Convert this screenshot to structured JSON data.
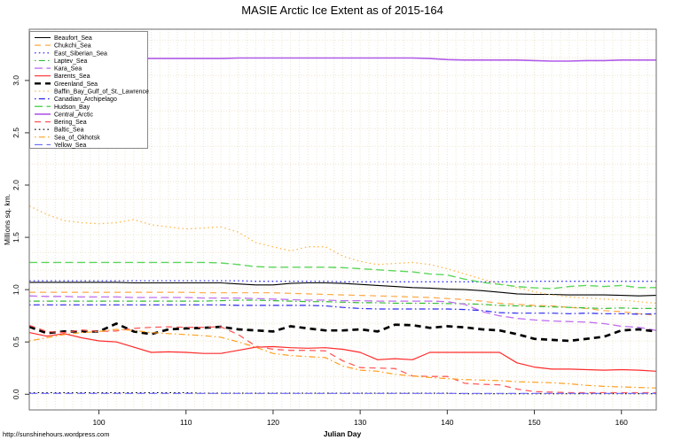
{
  "title": "MASIE Arctic Ice Extent as of 2015-164",
  "footer": {
    "url": "http://sunshinehours.wordpress.com"
  },
  "colors": {
    "border": "#6e6e6e",
    "grid": "#efe6cf",
    "tick": "#333333",
    "legend_border": "#888888",
    "background": "#ffffff"
  },
  "chart_data": {
    "type": "line",
    "title": "MASIE Arctic Ice Extent as of 2015-164",
    "xlabel": "Julian Day",
    "ylabel": "Millions sq. km.",
    "xlim": [
      92,
      164
    ],
    "ylim": [
      -0.15,
      3.49
    ],
    "x_ticks": [
      100,
      110,
      120,
      130,
      140,
      150,
      160
    ],
    "y_ticks": [
      0.0,
      0.5,
      1.0,
      1.5,
      2.0,
      2.5,
      3.0
    ],
    "grid": {
      "on": true,
      "x_step": 1,
      "y_step": 0.1693
    },
    "legend_position": "top-left",
    "x": [
      92,
      94,
      96,
      98,
      100,
      102,
      104,
      106,
      108,
      110,
      112,
      114,
      116,
      118,
      120,
      122,
      124,
      126,
      128,
      130,
      132,
      134,
      136,
      138,
      140,
      142,
      144,
      146,
      148,
      150,
      152,
      154,
      156,
      158,
      160,
      162,
      164
    ],
    "series": [
      {
        "name": "Beaufort_Sea",
        "color": "#000000",
        "dash": "solid",
        "width": 1.1,
        "values": [
          1.07,
          1.07,
          1.07,
          1.07,
          1.07,
          1.07,
          1.065,
          1.065,
          1.065,
          1.065,
          1.065,
          1.065,
          1.055,
          1.045,
          1.045,
          1.06,
          1.065,
          1.065,
          1.06,
          1.05,
          1.04,
          1.03,
          1.02,
          1.015,
          1.005,
          1.0,
          0.99,
          0.975,
          0.96,
          0.955,
          0.955,
          0.95,
          0.95,
          0.95,
          0.945,
          0.94,
          0.945
        ]
      },
      {
        "name": "Chukchi_Sea",
        "color": "#ffa845",
        "dash": "dashed",
        "width": 1.2,
        "values": [
          0.975,
          0.975,
          0.975,
          0.975,
          0.975,
          0.975,
          0.975,
          0.975,
          0.975,
          0.975,
          0.97,
          0.97,
          0.97,
          0.97,
          0.97,
          0.965,
          0.96,
          0.955,
          0.95,
          0.945,
          0.94,
          0.935,
          0.93,
          0.925,
          0.915,
          0.905,
          0.89,
          0.87,
          0.86,
          0.85,
          0.845,
          0.83,
          0.82,
          0.8,
          0.79,
          0.77,
          0.755
        ]
      },
      {
        "name": "East_Siberian_Sea",
        "color": "#3333ff",
        "dash": "dotted",
        "width": 1.3,
        "values": [
          1.085,
          1.085,
          1.085,
          1.085,
          1.085,
          1.085,
          1.085,
          1.085,
          1.085,
          1.085,
          1.085,
          1.085,
          1.085,
          1.08,
          1.08,
          1.08,
          1.08,
          1.08,
          1.075,
          1.075,
          1.075,
          1.075,
          1.075,
          1.075,
          1.075,
          1.075,
          1.075,
          1.075,
          1.075,
          1.08,
          1.08,
          1.08,
          1.08,
          1.08,
          1.08,
          1.08,
          1.08
        ]
      },
      {
        "name": "Laptev_Sea",
        "color": "#33bb33",
        "dash": "dashdot",
        "width": 1.2,
        "values": [
          0.89,
          0.89,
          0.89,
          0.89,
          0.89,
          0.89,
          0.89,
          0.89,
          0.89,
          0.89,
          0.89,
          0.895,
          0.9,
          0.9,
          0.895,
          0.89,
          0.885,
          0.885,
          0.88,
          0.875,
          0.875,
          0.87,
          0.87,
          0.87,
          0.867,
          0.865,
          0.86,
          0.85,
          0.845,
          0.84,
          0.835,
          0.83,
          0.825,
          0.82,
          0.825,
          0.82,
          0.82
        ]
      },
      {
        "name": "Kara_Sea",
        "color": "#bf70ef",
        "dash": "longdash",
        "width": 1.3,
        "values": [
          0.94,
          0.935,
          0.935,
          0.93,
          0.93,
          0.93,
          0.925,
          0.925,
          0.925,
          0.925,
          0.92,
          0.92,
          0.92,
          0.915,
          0.91,
          0.905,
          0.9,
          0.9,
          0.895,
          0.895,
          0.89,
          0.89,
          0.89,
          0.89,
          0.885,
          0.86,
          0.79,
          0.75,
          0.725,
          0.71,
          0.7,
          0.695,
          0.69,
          0.675,
          0.65,
          0.64,
          0.61
        ]
      },
      {
        "name": "Barents_Sea",
        "color": "#ff2a2a",
        "dash": "solid",
        "width": 1.2,
        "values": [
          0.59,
          0.555,
          0.58,
          0.54,
          0.51,
          0.5,
          0.45,
          0.4,
          0.405,
          0.4,
          0.39,
          0.39,
          0.42,
          0.45,
          0.455,
          0.445,
          0.44,
          0.445,
          0.43,
          0.4,
          0.33,
          0.34,
          0.33,
          0.4,
          0.4,
          0.4,
          0.4,
          0.4,
          0.3,
          0.26,
          0.24,
          0.24,
          0.235,
          0.23,
          0.235,
          0.23,
          0.22
        ]
      },
      {
        "name": "Greenland_Sea",
        "color": "#000000",
        "dash": "dashed",
        "width": 2.7,
        "values": [
          0.645,
          0.585,
          0.6,
          0.6,
          0.6,
          0.675,
          0.6,
          0.575,
          0.62,
          0.63,
          0.635,
          0.645,
          0.62,
          0.61,
          0.6,
          0.65,
          0.63,
          0.61,
          0.61,
          0.62,
          0.6,
          0.665,
          0.66,
          0.635,
          0.65,
          0.64,
          0.62,
          0.61,
          0.575,
          0.53,
          0.52,
          0.51,
          0.53,
          0.55,
          0.61,
          0.62,
          0.6
        ]
      },
      {
        "name": "Baffin_Bay_Gulf_of_St._Lawrence",
        "color": "#ffbb55",
        "dash": "dotted",
        "width": 1.3,
        "values": [
          1.8,
          1.72,
          1.66,
          1.64,
          1.63,
          1.64,
          1.67,
          1.62,
          1.6,
          1.58,
          1.59,
          1.6,
          1.55,
          1.45,
          1.41,
          1.37,
          1.41,
          1.41,
          1.32,
          1.27,
          1.24,
          1.25,
          1.26,
          1.24,
          1.2,
          1.15,
          1.1,
          1.06,
          1.02,
          0.98,
          0.95,
          0.93,
          0.92,
          0.91,
          0.9,
          0.885,
          0.87
        ]
      },
      {
        "name": "Canadian_Archipelago",
        "color": "#2a2aee",
        "dash": "dashdot",
        "width": 1.2,
        "values": [
          0.855,
          0.855,
          0.855,
          0.855,
          0.855,
          0.855,
          0.855,
          0.855,
          0.855,
          0.855,
          0.855,
          0.855,
          0.85,
          0.85,
          0.85,
          0.85,
          0.85,
          0.845,
          0.83,
          0.82,
          0.815,
          0.815,
          0.815,
          0.815,
          0.815,
          0.81,
          0.8,
          0.78,
          0.775,
          0.775,
          0.775,
          0.77,
          0.775,
          0.77,
          0.77,
          0.765,
          0.77
        ]
      },
      {
        "name": "Hudson_Bay",
        "color": "#5cd65c",
        "dash": "longdash",
        "width": 1.4,
        "values": [
          1.26,
          1.26,
          1.26,
          1.26,
          1.26,
          1.26,
          1.26,
          1.26,
          1.26,
          1.26,
          1.26,
          1.255,
          1.24,
          1.22,
          1.215,
          1.215,
          1.215,
          1.215,
          1.21,
          1.2,
          1.19,
          1.18,
          1.17,
          1.15,
          1.14,
          1.1,
          1.07,
          1.05,
          1.03,
          1.017,
          1.01,
          1.03,
          1.04,
          1.03,
          1.04,
          1.02,
          1.02
        ]
      },
      {
        "name": "Central_Arctic",
        "color": "#b05ce8",
        "dash": "solid",
        "width": 1.6,
        "values": [
          3.225,
          3.225,
          3.225,
          3.225,
          3.225,
          3.225,
          3.21,
          3.21,
          3.21,
          3.21,
          3.21,
          3.21,
          3.215,
          3.215,
          3.215,
          3.215,
          3.215,
          3.215,
          3.215,
          3.215,
          3.215,
          3.215,
          3.215,
          3.21,
          3.2,
          3.195,
          3.195,
          3.195,
          3.195,
          3.19,
          3.185,
          3.185,
          3.19,
          3.19,
          3.195,
          3.195,
          3.195
        ]
      },
      {
        "name": "Bering_Sea",
        "color": "#ff5c5c",
        "dash": "dashed",
        "width": 1.3,
        "values": [
          0.66,
          0.6,
          0.59,
          0.615,
          0.6,
          0.605,
          0.63,
          0.64,
          0.645,
          0.64,
          0.64,
          0.645,
          0.57,
          0.46,
          0.43,
          0.42,
          0.42,
          0.415,
          0.32,
          0.255,
          0.25,
          0.245,
          0.175,
          0.17,
          0.17,
          0.105,
          0.095,
          0.09,
          0.05,
          0.025,
          0.02,
          0.015,
          0.015,
          0.015,
          0.015,
          0.015,
          0.015
        ]
      },
      {
        "name": "Baltic_Sea",
        "color": "#000000",
        "dash": "dotted",
        "width": 1.1,
        "values": [
          0.015,
          0.015,
          0.015,
          0.015,
          0.015,
          0.015,
          0.015,
          0.015,
          0.015,
          0.015,
          0.01,
          0.01,
          0.01,
          0.01,
          0.01,
          0.01,
          0.01,
          0.01,
          0.01,
          0.01,
          0.01,
          0.01,
          0.01,
          0.01,
          0.01,
          0.005,
          0.005,
          0.005,
          0.005,
          0.005,
          0.005,
          0.005,
          0.005,
          0.005,
          0.005,
          0.005,
          0.005
        ]
      },
      {
        "name": "Sea_of_Okhotsk",
        "color": "#ffa020",
        "dash": "dashdot",
        "width": 1.2,
        "values": [
          0.51,
          0.54,
          0.57,
          0.59,
          0.6,
          0.62,
          0.61,
          0.59,
          0.58,
          0.57,
          0.56,
          0.545,
          0.5,
          0.45,
          0.39,
          0.37,
          0.36,
          0.35,
          0.27,
          0.23,
          0.22,
          0.19,
          0.175,
          0.16,
          0.15,
          0.14,
          0.135,
          0.13,
          0.12,
          0.115,
          0.11,
          0.1,
          0.085,
          0.075,
          0.07,
          0.065,
          0.06
        ]
      },
      {
        "name": "Yellow_Sea",
        "color": "#6b6bff",
        "dash": "longdash",
        "width": 1.2,
        "values": [
          0.008,
          0.008,
          0.008,
          0.008,
          0.008,
          0.008,
          0.008,
          0.008,
          0.008,
          0.008,
          0.008,
          0.008,
          0.008,
          0.008,
          0.008,
          0.008,
          0.008,
          0.008,
          0.008,
          0.008,
          0.008,
          0.008,
          0.008,
          0.008,
          0.008,
          0.008,
          0.008,
          0.008,
          0.008,
          0.008,
          0.008,
          0.008,
          0.008,
          0.008,
          0.008,
          0.008,
          0.008
        ]
      }
    ]
  }
}
